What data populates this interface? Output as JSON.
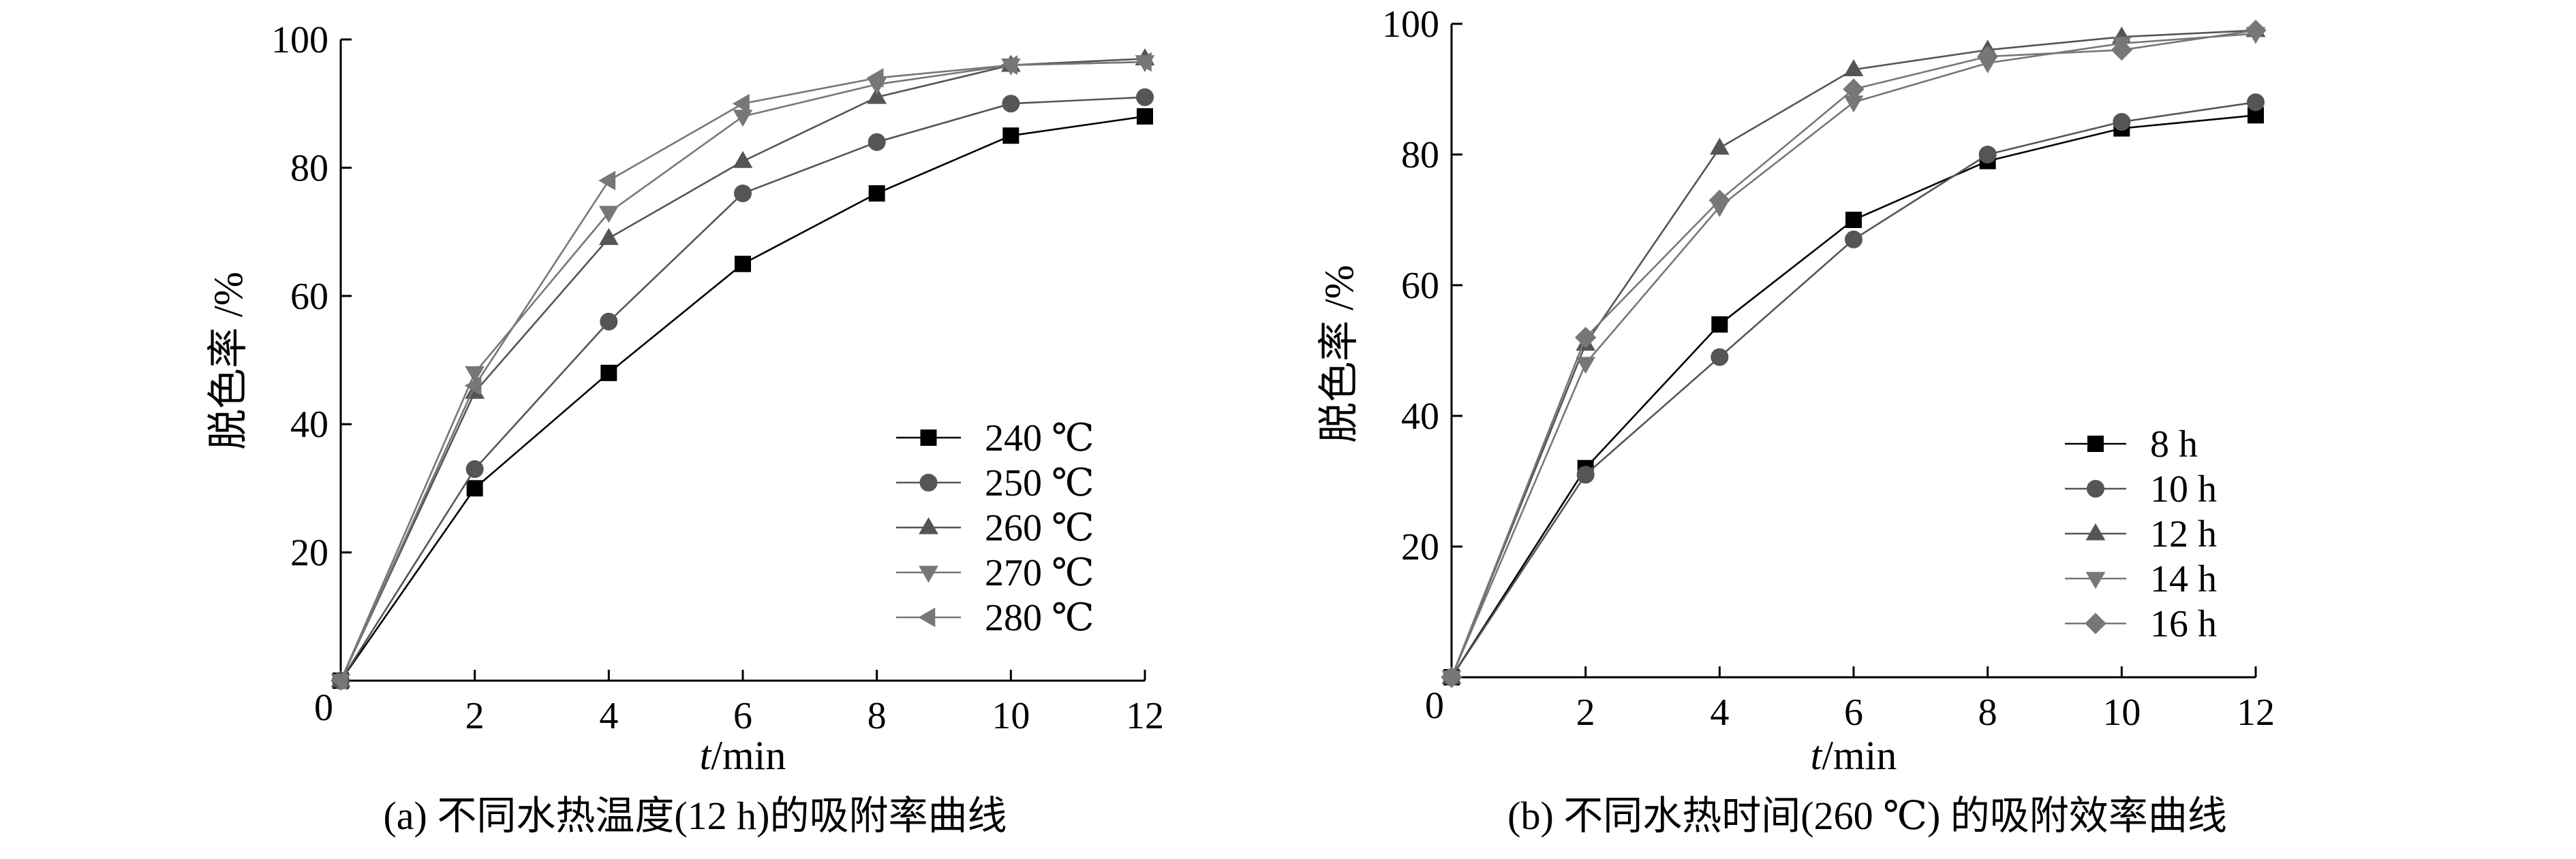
{
  "chart_data": [
    {
      "type": "line",
      "caption": "(a) 不同水热温度(12 h)的吸附率曲线",
      "xlabel_italic": "t",
      "xlabel_unit": "/min",
      "ylabel": "脱色率 /%",
      "xlim": [
        0,
        12
      ],
      "ylim": [
        0,
        100
      ],
      "xticks": [
        "0",
        "2",
        "4",
        "6",
        "8",
        "10",
        "12"
      ],
      "yticks": [
        "20",
        "40",
        "60",
        "80",
        "100"
      ],
      "legend_position": "bottom-right",
      "x": [
        0,
        2,
        4,
        6,
        8,
        10,
        12
      ],
      "series": [
        {
          "name": "240 ℃",
          "marker": "square",
          "color": "#000000",
          "values": [
            0,
            30,
            48,
            65,
            76,
            85,
            88
          ]
        },
        {
          "name": "250 ℃",
          "marker": "circle",
          "color": "#555555",
          "values": [
            0,
            33,
            56,
            76,
            84,
            90,
            91
          ]
        },
        {
          "name": "260 ℃",
          "marker": "triangle-up",
          "color": "#555555",
          "values": [
            0,
            45,
            69,
            81,
            91,
            96,
            97
          ]
        },
        {
          "name": "270 ℃",
          "marker": "triangle-down",
          "color": "#777777",
          "values": [
            0,
            48,
            73,
            88,
            93,
            96,
            96.5
          ]
        },
        {
          "name": "280 ℃",
          "marker": "triangle-left",
          "color": "#777777",
          "values": [
            0,
            46,
            78,
            90,
            94,
            96,
            96.5
          ]
        }
      ]
    },
    {
      "type": "line",
      "caption": "(b) 不同水热时间(260 ℃) 的吸附效率曲线",
      "xlabel_italic": "t",
      "xlabel_unit": "/min",
      "ylabel": "脱色率 /%",
      "xlim": [
        0,
        12
      ],
      "ylim": [
        0,
        100
      ],
      "xticks": [
        "0",
        "2",
        "4",
        "6",
        "8",
        "10",
        "12"
      ],
      "yticks": [
        "20",
        "40",
        "60",
        "80",
        "100"
      ],
      "legend_position": "bottom-right",
      "x": [
        0,
        2,
        4,
        6,
        8,
        10,
        12
      ],
      "series": [
        {
          "name": "8 h",
          "marker": "square",
          "color": "#000000",
          "values": [
            0,
            32,
            54,
            70,
            79,
            84,
            86
          ]
        },
        {
          "name": "10 h",
          "marker": "circle",
          "color": "#555555",
          "values": [
            0,
            31,
            49,
            67,
            80,
            85,
            88
          ]
        },
        {
          "name": "12 h",
          "marker": "triangle-up",
          "color": "#555555",
          "values": [
            0,
            51,
            81,
            93,
            96,
            98,
            99
          ]
        },
        {
          "name": "14 h",
          "marker": "triangle-down",
          "color": "#777777",
          "values": [
            0,
            48,
            72,
            88,
            94,
            97,
            98.5
          ]
        },
        {
          "name": "16 h",
          "marker": "diamond",
          "color": "#777777",
          "values": [
            0,
            52,
            73,
            90,
            95,
            96,
            99
          ]
        }
      ]
    }
  ]
}
